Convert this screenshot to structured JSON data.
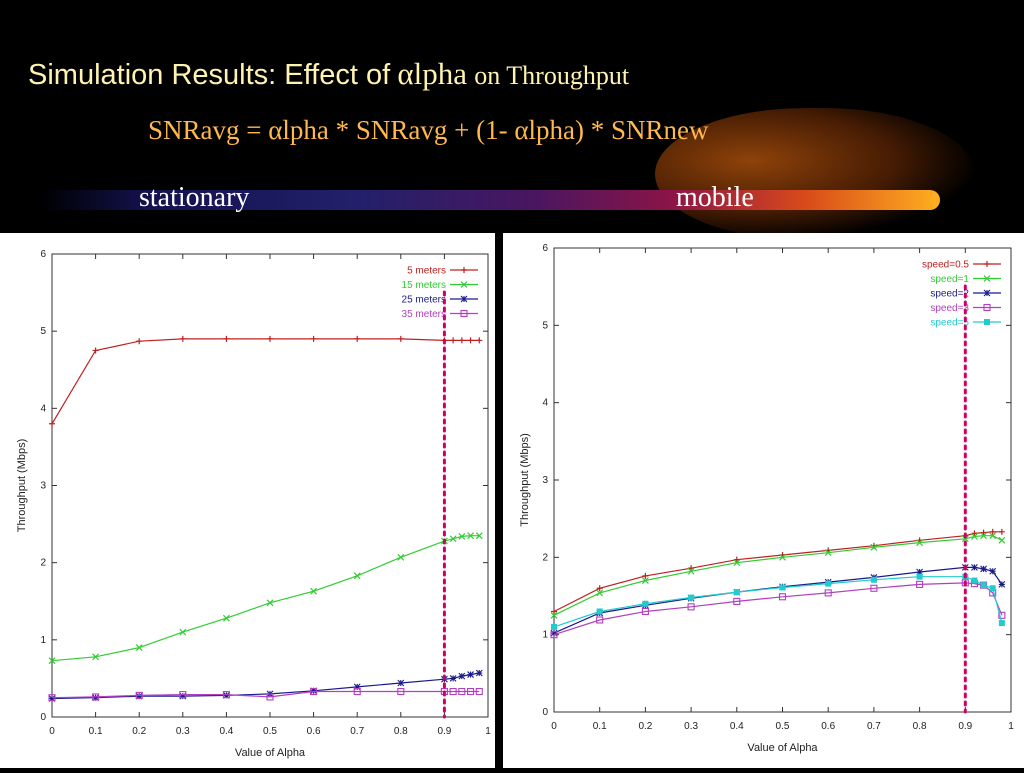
{
  "header": {
    "title_prefix": "Simulation Results: Effect of",
    "title_alpha": "αlpha",
    "title_suffix": "on Throughput",
    "formula": "SNRavg = αlpha * SNRavg + (1- αlpha) * SNRnew",
    "label_stationary": "stationary",
    "label_mobile": "mobile"
  },
  "chart_data": [
    {
      "type": "line",
      "xlabel": "Value of Alpha",
      "ylabel": "Throughput (Mbps)",
      "xlim": [
        0,
        1
      ],
      "ylim": [
        0,
        6
      ],
      "xticks": [
        0,
        0.1,
        0.2,
        0.3,
        0.4,
        0.5,
        0.6,
        0.7,
        0.8,
        0.9,
        1
      ],
      "xtick_labels": [
        "0",
        "0.1",
        "0.2",
        "0.3",
        "0.4",
        "0.5",
        "0.6",
        "0.7",
        "0.8",
        "0.9",
        "1"
      ],
      "yticks": [
        0,
        1,
        2,
        3,
        4,
        5,
        6
      ],
      "ytick_labels": [
        "0",
        "1",
        "2",
        "3",
        "4",
        "5",
        "6"
      ],
      "legend_position": "top-right",
      "marker_line_x": 0.9,
      "marker_line_color": "#cc0066",
      "series": [
        {
          "name": "5 meters",
          "color": "#c02020",
          "marker": "plus",
          "x": [
            0,
            0.1,
            0.2,
            0.3,
            0.4,
            0.5,
            0.6,
            0.7,
            0.8,
            0.9,
            0.92,
            0.94,
            0.96,
            0.98
          ],
          "y": [
            3.8,
            4.75,
            4.87,
            4.9,
            4.9,
            4.9,
            4.9,
            4.9,
            4.9,
            4.88,
            4.88,
            4.88,
            4.88,
            4.88
          ]
        },
        {
          "name": "15 meters",
          "color": "#33cc33",
          "marker": "x",
          "x": [
            0,
            0.1,
            0.2,
            0.3,
            0.4,
            0.5,
            0.6,
            0.7,
            0.8,
            0.9,
            0.92,
            0.94,
            0.96,
            0.98
          ],
          "y": [
            0.73,
            0.78,
            0.9,
            1.1,
            1.28,
            1.48,
            1.63,
            1.83,
            2.07,
            2.28,
            2.31,
            2.34,
            2.35,
            2.35
          ]
        },
        {
          "name": "25 meters",
          "color": "#1a1a8c",
          "marker": "star",
          "x": [
            0,
            0.1,
            0.2,
            0.3,
            0.4,
            0.5,
            0.6,
            0.7,
            0.8,
            0.9,
            0.92,
            0.94,
            0.96,
            0.98
          ],
          "y": [
            0.24,
            0.25,
            0.27,
            0.27,
            0.28,
            0.3,
            0.34,
            0.39,
            0.44,
            0.49,
            0.5,
            0.53,
            0.55,
            0.57
          ]
        },
        {
          "name": "35 meters",
          "color": "#b040c0",
          "marker": "square",
          "x": [
            0,
            0.1,
            0.2,
            0.3,
            0.4,
            0.5,
            0.6,
            0.7,
            0.8,
            0.9,
            0.92,
            0.94,
            0.96,
            0.98
          ],
          "y": [
            0.25,
            0.26,
            0.28,
            0.29,
            0.29,
            0.26,
            0.33,
            0.33,
            0.33,
            0.33,
            0.33,
            0.33,
            0.33,
            0.33
          ]
        }
      ]
    },
    {
      "type": "line",
      "xlabel": "Value of Alpha",
      "ylabel": "Throughput (Mbps)",
      "xlim": [
        0,
        1
      ],
      "ylim": [
        0,
        6
      ],
      "xticks": [
        0,
        0.1,
        0.2,
        0.3,
        0.4,
        0.5,
        0.6,
        0.7,
        0.8,
        0.9,
        1
      ],
      "xtick_labels": [
        "0",
        "0.1",
        "0.2",
        "0.3",
        "0.4",
        "0.5",
        "0.6",
        "0.7",
        "0.8",
        "0.9",
        "1"
      ],
      "yticks": [
        0,
        1,
        2,
        3,
        4,
        5,
        6
      ],
      "ytick_labels": [
        "0",
        "1",
        "2",
        "3",
        "4",
        "5",
        "6"
      ],
      "legend_position": "top-right",
      "marker_line_x": 0.9,
      "marker_line_color": "#cc0066",
      "series": [
        {
          "name": "speed=0.5",
          "color": "#c02020",
          "marker": "plus",
          "x": [
            0,
            0.1,
            0.2,
            0.3,
            0.4,
            0.5,
            0.6,
            0.7,
            0.8,
            0.9,
            0.92,
            0.94,
            0.96,
            0.98
          ],
          "y": [
            1.3,
            1.6,
            1.76,
            1.86,
            1.97,
            2.03,
            2.09,
            2.15,
            2.22,
            2.28,
            2.31,
            2.32,
            2.33,
            2.33
          ]
        },
        {
          "name": "speed=1",
          "color": "#33cc33",
          "marker": "x",
          "x": [
            0,
            0.1,
            0.2,
            0.3,
            0.4,
            0.5,
            0.6,
            0.7,
            0.8,
            0.9,
            0.92,
            0.94,
            0.96,
            0.98
          ],
          "y": [
            1.25,
            1.54,
            1.7,
            1.82,
            1.93,
            2.0,
            2.06,
            2.13,
            2.19,
            2.24,
            2.27,
            2.28,
            2.28,
            2.22
          ]
        },
        {
          "name": "speed=2",
          "color": "#1a1a8c",
          "marker": "star",
          "x": [
            0,
            0.1,
            0.2,
            0.3,
            0.4,
            0.5,
            0.6,
            0.7,
            0.8,
            0.9,
            0.92,
            0.94,
            0.96,
            0.98
          ],
          "y": [
            1.02,
            1.28,
            1.38,
            1.47,
            1.55,
            1.62,
            1.68,
            1.74,
            1.81,
            1.87,
            1.87,
            1.85,
            1.82,
            1.65
          ]
        },
        {
          "name": "speed=3",
          "color": "#b040c0",
          "marker": "square",
          "x": [
            0,
            0.1,
            0.2,
            0.3,
            0.4,
            0.5,
            0.6,
            0.7,
            0.8,
            0.9,
            0.92,
            0.94,
            0.96,
            0.98
          ],
          "y": [
            1.0,
            1.19,
            1.3,
            1.36,
            1.43,
            1.49,
            1.54,
            1.6,
            1.65,
            1.67,
            1.66,
            1.64,
            1.54,
            1.25
          ]
        },
        {
          "name": "speed=5",
          "color": "#22cccc",
          "marker": "filled-square",
          "x": [
            0,
            0.1,
            0.2,
            0.3,
            0.4,
            0.5,
            0.6,
            0.7,
            0.8,
            0.9,
            0.92,
            0.94,
            0.96,
            0.98
          ],
          "y": [
            1.1,
            1.3,
            1.4,
            1.48,
            1.55,
            1.61,
            1.66,
            1.71,
            1.75,
            1.75,
            1.7,
            1.64,
            1.6,
            1.15
          ]
        }
      ]
    }
  ]
}
